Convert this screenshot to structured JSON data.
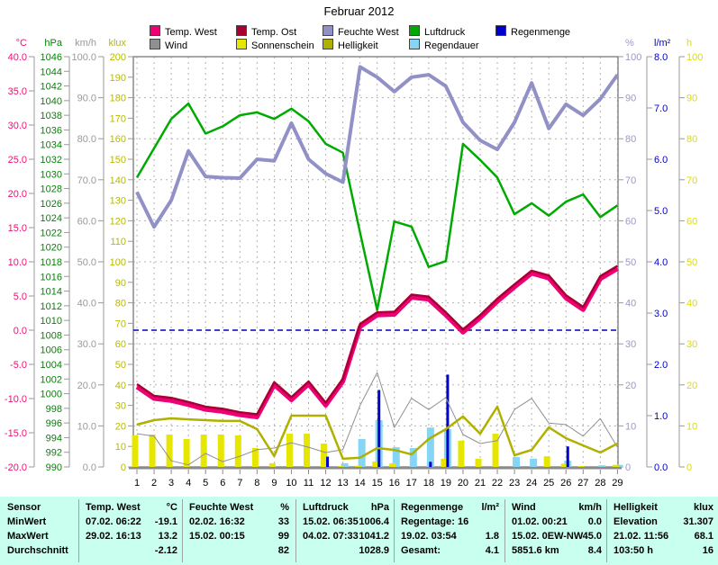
{
  "title": "Februar 2012",
  "legend": {
    "rows": [
      [
        {
          "label": "Temp. West",
          "color": "#ee0077"
        },
        {
          "label": "Temp. Ost",
          "color": "#a80030"
        },
        {
          "label": "Feuchte West",
          "color": "#9191c8"
        },
        {
          "label": "Luftdruck",
          "color": "#00aa00"
        },
        {
          "label": "Regenmenge",
          "color": "#0000cc"
        }
      ],
      [
        {
          "label": "Wind",
          "color": "#909090"
        },
        {
          "label": "Sonnenschein",
          "color": "#e6e600"
        },
        {
          "label": "Helligkeit",
          "color": "#b0b000"
        },
        {
          "label": "Regendauer",
          "color": "#85d6f5"
        }
      ]
    ]
  },
  "chart_data": {
    "type": "line",
    "title": "Februar 2012",
    "x": [
      1,
      2,
      3,
      4,
      5,
      6,
      7,
      8,
      9,
      10,
      11,
      12,
      13,
      14,
      15,
      16,
      17,
      18,
      19,
      20,
      21,
      22,
      23,
      24,
      25,
      26,
      27,
      28,
      29
    ],
    "axes": {
      "celsius": {
        "label": "°C",
        "min": -20,
        "max": 40,
        "step": 5,
        "decimals": 1,
        "color": "#ee1177",
        "side": "left"
      },
      "hpa": {
        "label": "hPa",
        "min": 990,
        "max": 1046,
        "step": 2,
        "decimals": 0,
        "color": "#008800",
        "side": "left"
      },
      "kmh": {
        "label": "km/h",
        "min": 0,
        "max": 100,
        "step": 10,
        "decimals": 1,
        "color": "#9a9a9a",
        "side": "left"
      },
      "klux": {
        "label": "klux",
        "min": 0,
        "max": 200,
        "step": 10,
        "decimals": 0,
        "color": "#b8b800",
        "side": "left"
      },
      "percent": {
        "label": "%",
        "min": 0,
        "max": 100,
        "step": 10,
        "decimals": 0,
        "color": "#9999cc",
        "side": "right"
      },
      "lm2": {
        "label": "l/m²",
        "min": 0,
        "max": 8,
        "step": 1,
        "decimals": 1,
        "color": "#0000cc",
        "side": "right"
      },
      "hours": {
        "label": "h",
        "min": 0,
        "max": 100,
        "step": 10,
        "decimals": 0,
        "color": "#dddd00",
        "side": "right"
      }
    },
    "zero_line": {
      "axis": "celsius",
      "value": 0,
      "color": "#0000bb"
    },
    "grid": true,
    "legend_position": "top",
    "series": [
      {
        "name": "Regendauer",
        "type": "bar",
        "axis": "hours",
        "color": "#85d6f5",
        "barwidth": 8,
        "offset": 2,
        "values": [
          0,
          0,
          0,
          0,
          0,
          0,
          0,
          0,
          0,
          0,
          0,
          0,
          0.9,
          6.8,
          11.4,
          4.8,
          4.6,
          9.6,
          9.2,
          0,
          0,
          0,
          2.4,
          2,
          0,
          1.5,
          0,
          0.4,
          0.5
        ]
      },
      {
        "name": "Sonnenschein",
        "type": "bar",
        "axis": "hours",
        "color": "#e6e600",
        "barwidth": 7,
        "offset": -2,
        "values": [
          7.7,
          7.9,
          7.9,
          6.8,
          7.9,
          7.9,
          7.7,
          4.6,
          0.9,
          8.1,
          8.1,
          5.7,
          0.2,
          0.3,
          1.3,
          0.9,
          0,
          0,
          2,
          6.4,
          2,
          8.1,
          0,
          0,
          2.6,
          0.8,
          0.2,
          0,
          0.5
        ]
      },
      {
        "name": "Regenmenge",
        "type": "bar",
        "axis": "lm2",
        "color": "#0000cc",
        "barwidth": 3,
        "offset": 2,
        "values": [
          0,
          0,
          0,
          0,
          0,
          0,
          0,
          0,
          0,
          0,
          0,
          0.2,
          0,
          0,
          1.5,
          0,
          0,
          0.1,
          1.8,
          0,
          0,
          0,
          0,
          0,
          0,
          0.4,
          0,
          0,
          0
        ]
      },
      {
        "name": "Wind",
        "type": "line",
        "axis": "kmh",
        "color": "#909090",
        "width": 1,
        "values": [
          8.1,
          7.5,
          1.5,
          0.5,
          3.3,
          1.3,
          2.6,
          4.2,
          4.6,
          5.9,
          4.8,
          3.5,
          4.2,
          15,
          23,
          9.6,
          16.7,
          14,
          16.9,
          7.9,
          5.7,
          6.4,
          14,
          16.7,
          10.7,
          10.3,
          7.5,
          11.8,
          4.8
        ]
      },
      {
        "name": "Helligkeit",
        "type": "line",
        "axis": "klux",
        "color": "#b0b000",
        "width": 2.5,
        "values": [
          20.6,
          22.8,
          23.7,
          23.2,
          22.8,
          22.4,
          22.4,
          18.4,
          5.3,
          25,
          25,
          25,
          4,
          4.5,
          9.2,
          8.3,
          6.1,
          13.6,
          18.4,
          24.6,
          16.2,
          29.4,
          5.7,
          8.3,
          19.3,
          14,
          10.5,
          7,
          11.4
        ]
      },
      {
        "name": "Luftdruck",
        "type": "line",
        "axis": "hpa",
        "color": "#00aa00",
        "width": 2.5,
        "values": [
          1029.5,
          1033.5,
          1037.5,
          1039.6,
          1035.5,
          1036.5,
          1038,
          1038.4,
          1037.5,
          1038.9,
          1037.2,
          1034.1,
          1032.9,
          1022,
          1011.4,
          1023.5,
          1022.8,
          1017.3,
          1018.1,
          1034.1,
          1031.9,
          1029.5,
          1024.5,
          1026,
          1024.3,
          1026.2,
          1027.2,
          1024.1,
          1025.7
        ]
      },
      {
        "name": "Feuchte West",
        "type": "line",
        "axis": "percent",
        "color": "#9191c8",
        "width": 4,
        "values": [
          67,
          58.5,
          65,
          77,
          70.8,
          70.5,
          70.4,
          75,
          74.6,
          83.8,
          75,
          71.5,
          69.4,
          97.5,
          95,
          91.5,
          95,
          95.6,
          92.8,
          84,
          79.6,
          77.4,
          84,
          93.6,
          82.5,
          88.4,
          85.7,
          89.7,
          95.6
        ]
      },
      {
        "name": "Temp. West",
        "type": "line",
        "axis": "celsius",
        "color": "#ee0077",
        "width": 5,
        "values": [
          -8.3,
          -10,
          -10.3,
          -10.9,
          -11.6,
          -11.9,
          -12.4,
          -12.7,
          -8,
          -10.2,
          -7.9,
          -11,
          -7.5,
          0.5,
          2.2,
          2.3,
          4.8,
          4.5,
          2.2,
          -0.3,
          1.8,
          4.2,
          6.3,
          8.3,
          7.6,
          4.7,
          3,
          7.5,
          9
        ]
      },
      {
        "name": "Temp. Ost",
        "type": "line",
        "axis": "celsius",
        "color": "#a80030",
        "width": 2.5,
        "values": [
          -7.9,
          -9.6,
          -9.9,
          -10.5,
          -11.2,
          -11.5,
          -12,
          -12.3,
          -7.6,
          -9.8,
          -7.5,
          -10.6,
          -7.1,
          0.9,
          2.6,
          2.7,
          5.2,
          4.9,
          2.6,
          0.1,
          2.2,
          4.6,
          6.7,
          8.7,
          8,
          5.1,
          3.4,
          7.9,
          9.4
        ]
      }
    ]
  },
  "table": {
    "row_labels": [
      "Sensor",
      "MinWert",
      "MaxWert",
      "Durchschnitt"
    ],
    "sections": [
      {
        "title": "Temp. West",
        "unit": "°C",
        "rows": [
          [
            "07.02. 06:22",
            "-19.1"
          ],
          [
            "29.02. 16:13",
            "13.2"
          ],
          [
            "",
            "-2.12"
          ]
        ]
      },
      {
        "title": "Feuchte West",
        "unit": "%",
        "rows": [
          [
            "02.02. 16:32",
            "33"
          ],
          [
            "15.02. 00:15",
            "99"
          ],
          [
            "",
            "82"
          ]
        ]
      },
      {
        "title": "Luftdruck",
        "unit": "hPa",
        "rows": [
          [
            "15.02. 06:35",
            "1006.4"
          ],
          [
            "04.02. 07:33",
            "1041.2"
          ],
          [
            "",
            "1028.9"
          ]
        ]
      },
      {
        "title": "Regenmenge",
        "unit": "l/m²",
        "rows": [
          [
            "Regentage: 16",
            ""
          ],
          [
            "19.02. 03:54",
            "1.8"
          ],
          [
            "Gesamt:",
            "4.1"
          ]
        ]
      },
      {
        "title": "Wind",
        "unit": "km/h",
        "rows": [
          [
            "01.02. 00:21",
            "0.0"
          ],
          [
            "15.02. 0EW-NW",
            "45.0"
          ],
          [
            "5851.6 km",
            "8.4"
          ]
        ]
      },
      {
        "title": "Helligkeit",
        "unit": "klux",
        "rows": [
          [
            "Elevation",
            "31.307"
          ],
          [
            "21.02. 11:56",
            "68.1"
          ],
          [
            "103:50 h",
            "16"
          ]
        ]
      }
    ]
  }
}
